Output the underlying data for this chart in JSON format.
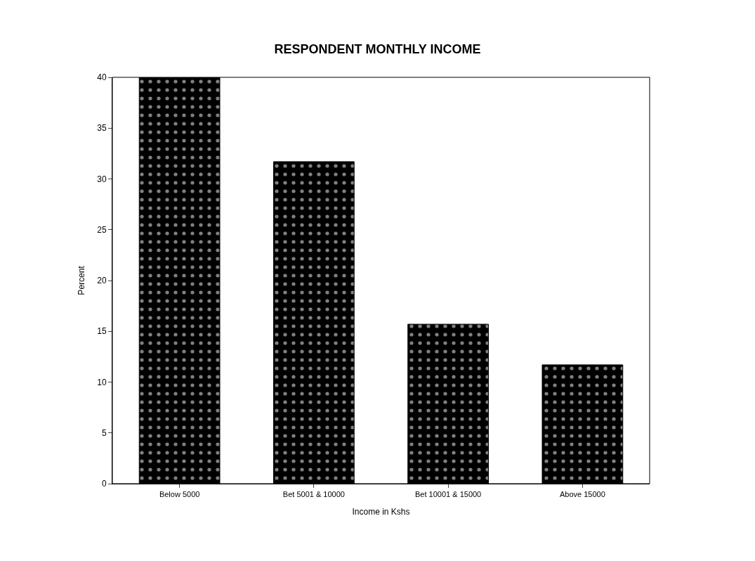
{
  "chart_data": {
    "type": "bar",
    "title": "RESPONDENT MONTHLY INCOME",
    "xlabel": "Income in Kshs",
    "ylabel": "Percent",
    "categories": [
      "Below 5000",
      "Bet 5001 & 10000",
      "Bet 10001 & 15000",
      "Above 15000"
    ],
    "values": [
      40,
      31.7,
      15.7,
      11.7
    ],
    "color": "#000000",
    "ylim": [
      0,
      40
    ],
    "yticks": [
      0,
      5,
      10,
      15,
      20,
      25,
      30,
      35,
      40
    ]
  }
}
